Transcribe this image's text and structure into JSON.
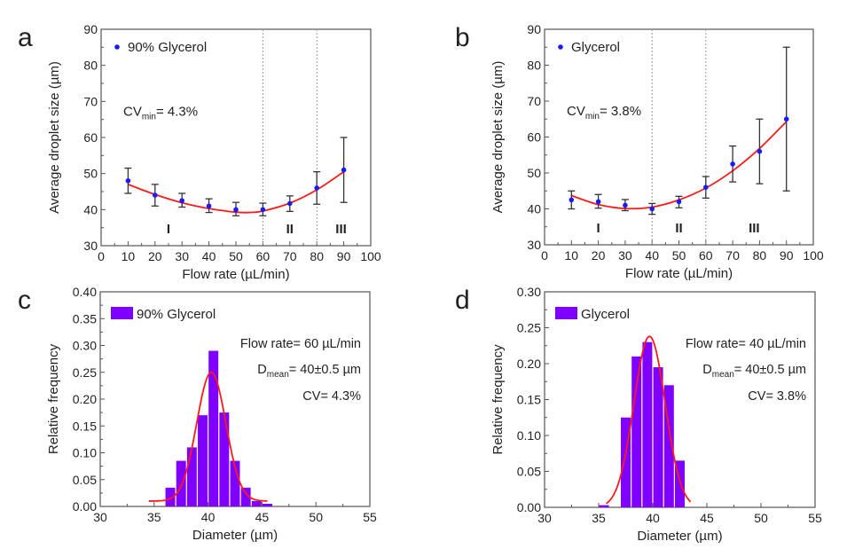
{
  "chart_data": [
    {
      "panel": "a",
      "type": "scatter",
      "xlabel": "Flow rate (µL/min)",
      "ylabel": "Average droplet size (µm)",
      "xlim": [
        0,
        100
      ],
      "ylim": [
        30,
        90
      ],
      "xticks": [
        0,
        10,
        20,
        30,
        40,
        50,
        60,
        70,
        80,
        90,
        100
      ],
      "yticks": [
        30,
        40,
        50,
        60,
        70,
        80,
        90
      ],
      "legend": {
        "label": "90% Glycerol",
        "position": "top-left"
      },
      "annotation": {
        "prefix": "CV",
        "sub": "min",
        "suffix": "= 4.3%"
      },
      "regions": [
        "I",
        "II",
        "III"
      ],
      "region_x": [
        25,
        70,
        89
      ],
      "dividers": [
        60,
        80
      ],
      "series": [
        {
          "name": "90% Glycerol",
          "x": [
            10,
            20,
            30,
            40,
            50,
            60,
            70,
            80,
            90
          ],
          "y": [
            48,
            44,
            42.5,
            41,
            40,
            40,
            41.7,
            46,
            51
          ],
          "err_low": [
            44.5,
            41,
            40.7,
            39.2,
            38.3,
            38.3,
            39.5,
            41.5,
            42
          ],
          "err_high": [
            51.5,
            47,
            44.5,
            43,
            42,
            41.8,
            43.8,
            50.5,
            60
          ]
        }
      ],
      "fit": {
        "x": [
          10,
          20,
          30,
          40,
          50,
          55,
          60,
          70,
          80,
          90
        ],
        "y": [
          47,
          44.2,
          41.9,
          40.3,
          39.3,
          39.2,
          39.6,
          41.8,
          45.5,
          50.5
        ]
      }
    },
    {
      "panel": "b",
      "type": "scatter",
      "xlabel": "Flow rate (µL/min)",
      "ylabel": "Average droplet size (µm)",
      "xlim": [
        0,
        100
      ],
      "ylim": [
        30,
        90
      ],
      "xticks": [
        0,
        10,
        20,
        30,
        40,
        50,
        60,
        70,
        80,
        90,
        100
      ],
      "yticks": [
        30,
        40,
        50,
        60,
        70,
        80,
        90
      ],
      "legend": {
        "label": "Glycerol",
        "position": "top-left"
      },
      "annotation": {
        "prefix": "CV",
        "sub": "min",
        "suffix": "= 3.8%"
      },
      "regions": [
        "I",
        "II",
        "III"
      ],
      "region_x": [
        20,
        50,
        78
      ],
      "dividers": [
        40,
        60
      ],
      "series": [
        {
          "name": "Glycerol",
          "x": [
            10,
            20,
            30,
            40,
            50,
            60,
            70,
            80,
            90
          ],
          "y": [
            42.5,
            42,
            41,
            40,
            42,
            46,
            52.5,
            56,
            65
          ],
          "err_low": [
            40,
            40.2,
            39.5,
            38.5,
            40.3,
            43,
            47.5,
            47,
            45
          ],
          "err_high": [
            45,
            44,
            42.6,
            41.5,
            43.5,
            49,
            57.5,
            65,
            85
          ]
        }
      ],
      "fit": {
        "x": [
          10,
          20,
          30,
          40,
          50,
          60,
          70,
          80,
          90
        ],
        "y": [
          43.7,
          41.2,
          40.1,
          40.5,
          42.5,
          45.8,
          50.6,
          56.8,
          64.3
        ]
      }
    },
    {
      "panel": "c",
      "type": "bar",
      "xlabel": "Diameter (µm)",
      "ylabel": "Relative frequency",
      "xlim": [
        30,
        55
      ],
      "ylim": [
        0,
        0.4
      ],
      "xticks": [
        30,
        35,
        40,
        45,
        50,
        55
      ],
      "yticks": [
        "0.00",
        "0.05",
        "0.10",
        "0.15",
        "0.20",
        "0.25",
        "0.30",
        "0.35",
        "0.40"
      ],
      "legend": {
        "label": "90% Glycerol",
        "position": "top-left"
      },
      "annotations": {
        "flow": "Flow rate= 60 µL/min",
        "dmean_prefix": "D",
        "dmean_sub": "mean",
        "dmean_suffix": "= 40±0.5 µm",
        "cv": "CV= 4.3%"
      },
      "bin_width": 1,
      "bin_start": [
        36,
        37,
        38,
        39,
        40,
        41,
        42,
        43,
        44,
        45
      ],
      "values": [
        0.035,
        0.085,
        0.11,
        0.17,
        0.29,
        0.175,
        0.085,
        0.035,
        0.01,
        0.005
      ],
      "gaussian": {
        "mean": 40.3,
        "sigma": 1.35,
        "peak": 0.25,
        "baseline": 0.01,
        "x_range": [
          34.5,
          45.5
        ]
      }
    },
    {
      "panel": "d",
      "type": "bar",
      "xlabel": "Diameter (µm)",
      "ylabel": "Relative frequency",
      "xlim": [
        30,
        55
      ],
      "ylim": [
        0,
        0.3
      ],
      "xticks": [
        30,
        35,
        40,
        45,
        50,
        55
      ],
      "yticks": [
        "0.00",
        "0.05",
        "0.10",
        "0.15",
        "0.20",
        "0.25",
        "0.30"
      ],
      "legend": {
        "label": "Glycerol",
        "position": "top-left"
      },
      "annotations": {
        "flow": "Flow rate= 40 µL/min",
        "dmean_prefix": "D",
        "dmean_sub": "mean",
        "dmean_suffix": "= 40±0.5 µm",
        "cv": "CV= 3.8%"
      },
      "bin_width": 1,
      "bin_start": [
        35,
        37,
        38,
        39,
        40,
        41,
        42
      ],
      "values": [
        0.003,
        0.125,
        0.21,
        0.23,
        0.195,
        0.17,
        0.065
      ],
      "gaussian": {
        "mean": 39.7,
        "sigma": 1.45,
        "peak": 0.238,
        "baseline": 0,
        "x_range": [
          35.7,
          43.5
        ]
      }
    }
  ],
  "panel_labels": [
    "a",
    "b",
    "c",
    "d"
  ],
  "colors": {
    "point": "#1a1aff",
    "fit": "#ff1a1a",
    "bar": "#7f00ff",
    "axis": "#555555",
    "errorbar": "#333333",
    "divider": "#999999"
  }
}
